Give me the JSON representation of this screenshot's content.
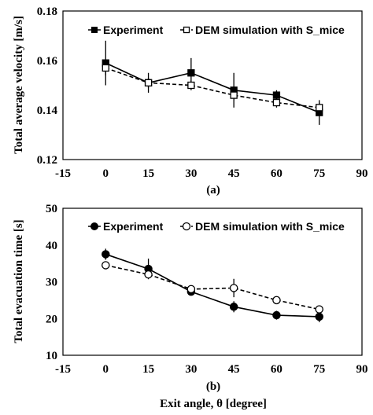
{
  "chart_data": [
    {
      "type": "line",
      "panel_label": "(a)",
      "ylabel": "Total average velocity [m/s]",
      "xlim": [
        -15,
        90
      ],
      "ylim": [
        0.12,
        0.18
      ],
      "xticks": [
        "-15",
        "0",
        "15",
        "30",
        "45",
        "60",
        "75",
        "90"
      ],
      "yticks": [
        "0.12",
        "0.14",
        "0.16",
        "0.18"
      ],
      "legend_position": "top",
      "series": [
        {
          "name": "Experiment",
          "marker": "filled-square",
          "line": "solid",
          "x": [
            0,
            15,
            30,
            45,
            60,
            75
          ],
          "y": [
            0.159,
            0.151,
            0.155,
            0.148,
            0.146,
            0.139
          ],
          "err": [
            0.009,
            0.004,
            0.006,
            0.007,
            0.002,
            0.005
          ]
        },
        {
          "name": "DEM simulation with S_mice",
          "marker": "open-square",
          "line": "dashed",
          "x": [
            0,
            15,
            30,
            45,
            60,
            75
          ],
          "y": [
            0.157,
            0.151,
            0.15,
            0.146,
            0.143,
            0.141
          ],
          "err": [
            0.003,
            0.002,
            0.002,
            0.002,
            0.002,
            0.002
          ]
        }
      ]
    },
    {
      "type": "line",
      "panel_label": "(b)",
      "ylabel": "Total evacuation time [s]",
      "xlabel": "Exit angle, θ [degree]",
      "xlim": [
        -15,
        90
      ],
      "ylim": [
        10,
        50
      ],
      "xticks": [
        "-15",
        "0",
        "15",
        "30",
        "45",
        "60",
        "75",
        "90"
      ],
      "yticks": [
        "10",
        "20",
        "30",
        "40",
        "50"
      ],
      "legend_position": "top",
      "series": [
        {
          "name": "Experiment",
          "marker": "filled-circle",
          "line": "solid",
          "x": [
            0,
            15,
            30,
            45,
            60,
            75
          ],
          "y": [
            37.5,
            33.5,
            27.3,
            23.2,
            20.9,
            20.5
          ],
          "err": [
            1.5,
            2.8,
            0.8,
            1.5,
            1.2,
            1.5
          ]
        },
        {
          "name": "DEM simulation with S_mice",
          "marker": "open-circle",
          "line": "dashed",
          "x": [
            0,
            15,
            30,
            45,
            60,
            75
          ],
          "y": [
            34.5,
            32.0,
            28.0,
            28.3,
            25.0,
            22.5
          ],
          "err": [
            1.0,
            1.0,
            1.0,
            2.5,
            0.8,
            0.8
          ]
        }
      ]
    }
  ]
}
